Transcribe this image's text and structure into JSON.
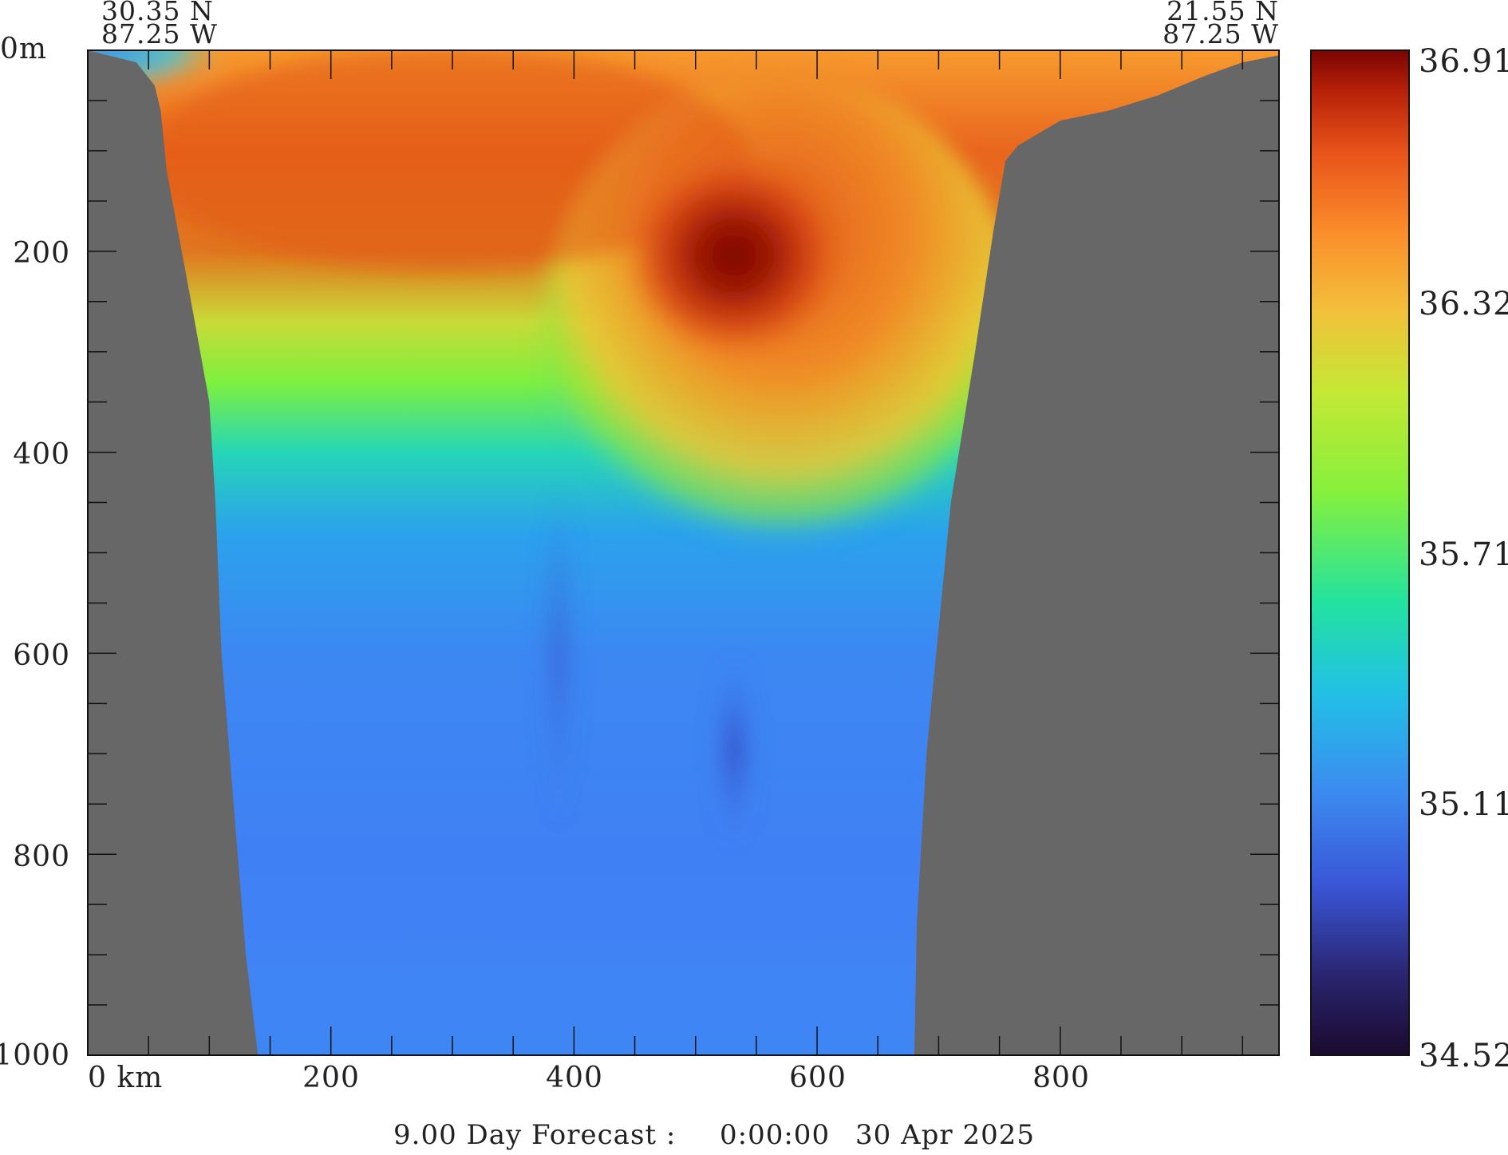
{
  "header": {
    "left_lat": "30.35 N",
    "left_lon": "87.25 W",
    "right_lat": "21.55 N",
    "right_lon": "87.25 W"
  },
  "footer": {
    "forecast": "9.00 Day Forecast :",
    "time": "0:00:00",
    "date": "30 Apr 2025"
  },
  "chart_data": {
    "type": "heatmap",
    "title": "",
    "xlabel": "",
    "ylabel": "",
    "xlim": [
      0,
      980
    ],
    "ylim": [
      0,
      1000
    ],
    "y_inverted": true,
    "x_ticks": [
      "0 km",
      "200",
      "400",
      "600",
      "800"
    ],
    "x_tick_values": [
      0,
      200,
      400,
      600,
      800
    ],
    "y_ticks": [
      "0m",
      "200",
      "400",
      "600",
      "800",
      "1000"
    ],
    "y_tick_values": [
      0,
      200,
      400,
      600,
      800,
      1000
    ],
    "colorbar": {
      "min": 34.52,
      "max": 36.91,
      "tick_labels": [
        "36.91",
        "36.32",
        "35.71",
        "35.11",
        "34.52"
      ],
      "tick_values": [
        36.91,
        36.32,
        35.71,
        35.11,
        34.52
      ]
    },
    "land_color": "#676767",
    "bathymetry_km_depth": [
      [
        0,
        0
      ],
      [
        40,
        12
      ],
      [
        55,
        35
      ],
      [
        60,
        60
      ],
      [
        65,
        120
      ],
      [
        85,
        250
      ],
      [
        100,
        350
      ],
      [
        105,
        450
      ],
      [
        110,
        600
      ],
      [
        120,
        750
      ],
      [
        130,
        900
      ],
      [
        140,
        1000
      ],
      [
        680,
        1000
      ],
      [
        682,
        870
      ],
      [
        690,
        700
      ],
      [
        710,
        450
      ],
      [
        730,
        300
      ],
      [
        745,
        180
      ],
      [
        755,
        110
      ],
      [
        765,
        95
      ],
      [
        800,
        70
      ],
      [
        840,
        60
      ],
      [
        880,
        45
      ],
      [
        920,
        25
      ],
      [
        950,
        12
      ],
      [
        980,
        5
      ]
    ],
    "features": [
      {
        "name": "salinity maximum core",
        "km": 540,
        "depth_m": 200,
        "value": 36.9
      },
      {
        "name": "fresher surface water",
        "km": 20,
        "depth_m": 10,
        "value": 35.2
      },
      {
        "name": "saline wedge tongue",
        "km": 580,
        "depth_m": 480,
        "value": 36.2
      }
    ],
    "colormap": [
      "#1a0a2e",
      "#2a2570",
      "#3a56d8",
      "#3c8af0",
      "#22c0e6",
      "#22e2a0",
      "#86f03c",
      "#c4e834",
      "#f2c13a",
      "#fb8c2a",
      "#e8521a",
      "#b62008",
      "#7a0403"
    ]
  }
}
